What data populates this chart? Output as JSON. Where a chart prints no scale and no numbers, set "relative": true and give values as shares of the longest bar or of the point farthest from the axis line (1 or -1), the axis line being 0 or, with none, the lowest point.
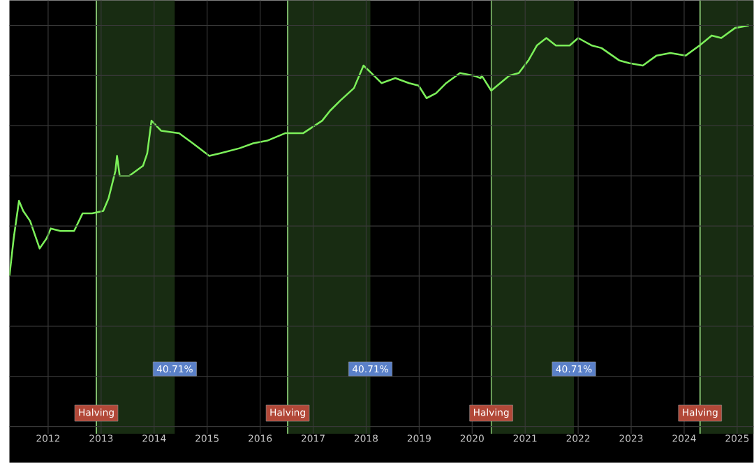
{
  "chart_data": {
    "type": "line",
    "relative": true,
    "color": "#7cf05a",
    "grid": true,
    "x": [
      2011.27,
      2011.35,
      2011.45,
      2011.53,
      2011.66,
      2011.84,
      2011.97,
      2012.05,
      2012.23,
      2012.49,
      2012.65,
      2012.83,
      2013.04,
      2013.14,
      2013.27,
      2013.3,
      2013.35,
      2013.53,
      2013.79,
      2013.87,
      2013.95,
      2014.13,
      2014.47,
      2014.73,
      2015.04,
      2015.25,
      2015.61,
      2015.87,
      2016.13,
      2016.47,
      2016.81,
      2017.17,
      2017.32,
      2017.51,
      2017.77,
      2017.95,
      2018.1,
      2018.29,
      2018.55,
      2018.81,
      2018.99,
      2019.14,
      2019.32,
      2019.51,
      2019.77,
      2020.03,
      2020.16,
      2020.18,
      2020.36,
      2020.7,
      2020.88,
      2021.06,
      2021.22,
      2021.4,
      2021.58,
      2021.84,
      2022.0,
      2022.26,
      2022.44,
      2022.78,
      2022.96,
      2023.22,
      2023.48,
      2023.74,
      2024.03,
      2024.29,
      2024.52,
      2024.7,
      2024.96,
      2025.22
    ],
    "values": [
      0,
      0.15,
      0.3,
      0.26,
      0.22,
      0.11,
      0.15,
      0.19,
      0.18,
      0.18,
      0.25,
      0.25,
      0.26,
      0.31,
      0.42,
      0.48,
      0.4,
      0.4,
      0.44,
      0.49,
      0.62,
      0.58,
      0.57,
      0.53,
      0.48,
      0.49,
      0.51,
      0.53,
      0.54,
      0.57,
      0.57,
      0.62,
      0.66,
      0.7,
      0.75,
      0.84,
      0.81,
      0.77,
      0.79,
      0.77,
      0.76,
      0.71,
      0.73,
      0.77,
      0.81,
      0.8,
      0.79,
      0.8,
      0.74,
      0.8,
      0.81,
      0.86,
      0.92,
      0.95,
      0.92,
      0.92,
      0.95,
      0.92,
      0.91,
      0.86,
      0.85,
      0.84,
      0.88,
      0.89,
      0.88,
      0.92,
      0.96,
      0.95,
      0.99,
      1.0
    ],
    "xlim": [
      2011.27,
      2025.31
    ],
    "xticks": [
      2012,
      2013,
      2014,
      2015,
      2016,
      2017,
      2018,
      2019,
      2020,
      2021,
      2022,
      2023,
      2024,
      2025
    ],
    "ref_lines": [
      {
        "axis": "x",
        "value": 2012.91,
        "label": "Halving",
        "color": "#8fd17a"
      },
      {
        "axis": "x",
        "value": 2016.52,
        "label": "Halving",
        "color": "#8fd17a"
      },
      {
        "axis": "x",
        "value": 2020.36,
        "label": "Halving",
        "color": "#8fd17a"
      },
      {
        "axis": "x",
        "value": 2024.3,
        "label": "Halving",
        "color": "#8fd17a"
      }
    ],
    "bands": [
      {
        "axis": "x",
        "from": 2012.91,
        "to": 2014.39,
        "label": "40.71%",
        "color": "#182c12"
      },
      {
        "axis": "x",
        "from": 2016.52,
        "to": 2018.08,
        "label": "40.71%",
        "color": "#182c12"
      },
      {
        "axis": "x",
        "from": 2020.36,
        "to": 2021.92,
        "label": "40.71%",
        "color": "#182c12"
      },
      {
        "axis": "x",
        "from": 2024.3,
        "to": 2025.31,
        "color": "#182c12"
      }
    ]
  }
}
